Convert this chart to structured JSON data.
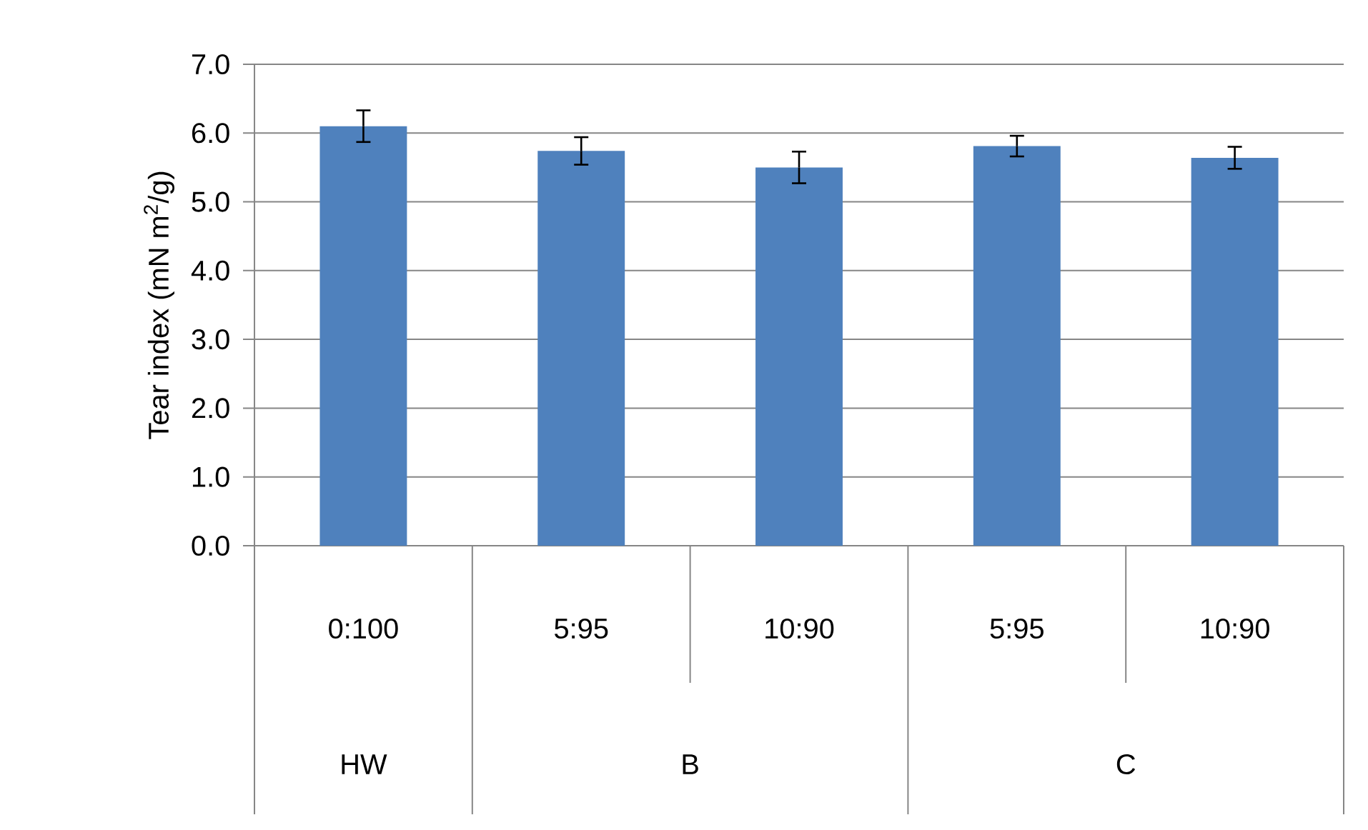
{
  "chart_data": {
    "type": "bar",
    "ylabel": "Tear index (mN m$^{2}$/g)",
    "categories": [
      "0:100",
      "5:95",
      "10:90",
      "5:95",
      "10:90"
    ],
    "values": [
      6.1,
      5.74,
      5.5,
      5.81,
      5.64
    ],
    "errors": [
      0.23,
      0.2,
      0.23,
      0.15,
      0.16
    ],
    "color": "#4f81bd",
    "ylim": [
      0,
      7
    ],
    "yticks": [
      {
        "value": 0,
        "label": "0.0"
      },
      {
        "value": 1,
        "label": "1.0"
      },
      {
        "value": 2,
        "label": "2.0"
      },
      {
        "value": 3,
        "label": "3.0"
      },
      {
        "value": 4,
        "label": "4.0"
      },
      {
        "value": 5,
        "label": "5.0"
      },
      {
        "value": 6,
        "label": "6.0"
      },
      {
        "value": 7,
        "label": "7.0"
      }
    ],
    "grid": "y",
    "annotations": [
      "HW",
      "B",
      "C"
    ]
  }
}
